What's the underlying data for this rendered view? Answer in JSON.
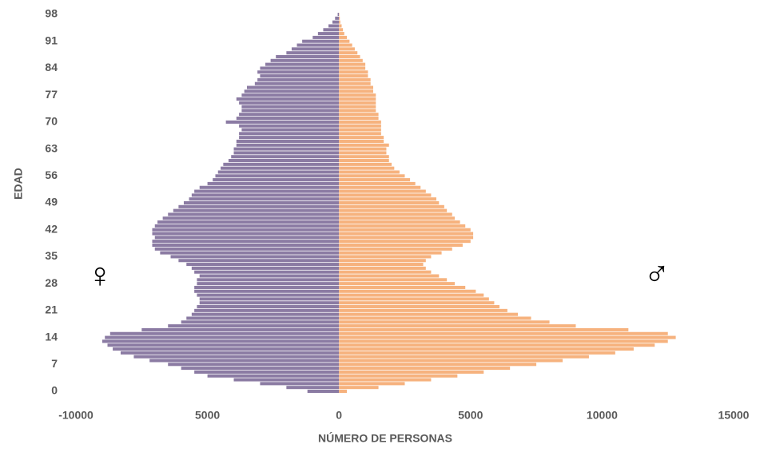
{
  "chart_data": {
    "type": "pyramid",
    "y_axis_label": "EDAD",
    "x_axis_label": "NÚMERO DE PERSONAS",
    "annotations": [
      "♀",
      "♂"
    ],
    "categories": [
      0,
      1,
      2,
      3,
      4,
      5,
      6,
      7,
      8,
      9,
      10,
      11,
      12,
      13,
      14,
      15,
      16,
      17,
      18,
      19,
      20,
      21,
      22,
      23,
      24,
      25,
      26,
      27,
      28,
      29,
      30,
      31,
      32,
      33,
      34,
      35,
      36,
      37,
      38,
      39,
      40,
      41,
      42,
      43,
      44,
      45,
      46,
      47,
      48,
      49,
      50,
      51,
      52,
      53,
      54,
      55,
      56,
      57,
      58,
      59,
      60,
      61,
      62,
      63,
      64,
      65,
      66,
      67,
      68,
      69,
      70,
      71,
      72,
      73,
      74,
      75,
      76,
      77,
      78,
      79,
      80,
      81,
      82,
      83,
      84,
      85,
      86,
      87,
      88,
      89,
      90,
      91,
      92,
      93,
      94,
      95,
      96,
      97,
      98
    ],
    "series": [
      {
        "color": "#8b7ba3",
        "values": [
          -1200,
          -2000,
          -3000,
          -4000,
          -5000,
          -5500,
          -6000,
          -6500,
          -7200,
          -7800,
          -8300,
          -8600,
          -8800,
          -9000,
          -8900,
          -8700,
          -7500,
          -6500,
          -6000,
          -5800,
          -5600,
          -5500,
          -5400,
          -5300,
          -5300,
          -5400,
          -5500,
          -5500,
          -5400,
          -5400,
          -5300,
          -5500,
          -5600,
          -5800,
          -6100,
          -6400,
          -6800,
          -7000,
          -7100,
          -7100,
          -7000,
          -7100,
          -7100,
          -7000,
          -6900,
          -6700,
          -6500,
          -6300,
          -6100,
          -5900,
          -5700,
          -5600,
          -5500,
          -5300,
          -5000,
          -4800,
          -4700,
          -4600,
          -4500,
          -4400,
          -4200,
          -4100,
          -4000,
          -4000,
          -3900,
          -3900,
          -3800,
          -3800,
          -3700,
          -3800,
          -4300,
          -3900,
          -3800,
          -3700,
          -3700,
          -3800,
          -3900,
          -3700,
          -3600,
          -3500,
          -3200,
          -3100,
          -3000,
          -3100,
          -3000,
          -2800,
          -2600,
          -2400,
          -2000,
          -1800,
          -1600,
          -1400,
          -1000,
          -800,
          -600,
          -400,
          -250,
          -150,
          -50
        ]
      },
      {
        "color": "#f6b27e",
        "values": [
          300,
          1500,
          2500,
          3500,
          4500,
          5500,
          6500,
          7500,
          8500,
          9500,
          10500,
          11200,
          12000,
          12500,
          12800,
          12500,
          11000,
          9000,
          8000,
          7300,
          6800,
          6400,
          6100,
          5900,
          5700,
          5500,
          5200,
          4800,
          4400,
          4100,
          3800,
          3500,
          3300,
          3200,
          3300,
          3500,
          3900,
          4300,
          4700,
          5000,
          5100,
          5100,
          5000,
          4800,
          4600,
          4400,
          4300,
          4100,
          4000,
          3800,
          3700,
          3500,
          3300,
          3100,
          2900,
          2700,
          2500,
          2300,
          2100,
          2000,
          1900,
          1900,
          1800,
          1800,
          1900,
          1700,
          1700,
          1600,
          1600,
          1600,
          1600,
          1500,
          1500,
          1400,
          1400,
          1400,
          1400,
          1400,
          1300,
          1300,
          1200,
          1200,
          1100,
          1100,
          1000,
          1000,
          900,
          800,
          700,
          600,
          500,
          400,
          300,
          200,
          150,
          100,
          50,
          30,
          10
        ]
      }
    ],
    "xlim": [
      -10000,
      15000
    ],
    "xticks": [
      -10000,
      {
        "value": -5000,
        "label": "5000"
      },
      0,
      5000,
      10000,
      15000
    ],
    "ylim": [
      -0.5,
      98.5
    ],
    "yticks": [
      0,
      7,
      14,
      21,
      28,
      35,
      42,
      49,
      56,
      63,
      70,
      77,
      84,
      91,
      98
    ]
  }
}
